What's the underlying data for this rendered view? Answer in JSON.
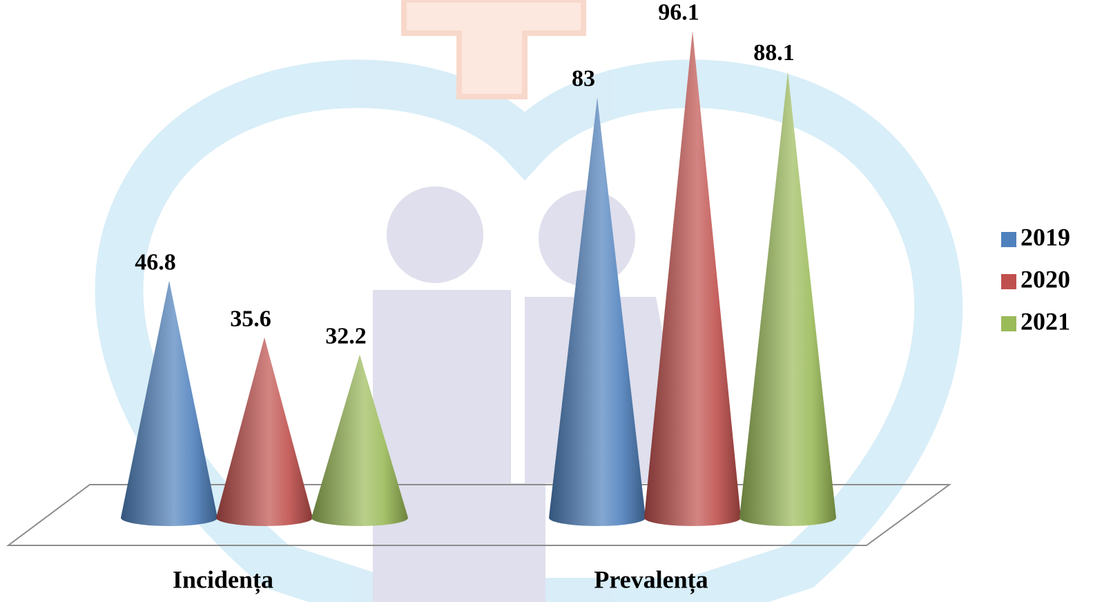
{
  "chart_data": {
    "type": "cone",
    "categories": [
      "Incidența",
      "Prevalența"
    ],
    "series": [
      {
        "name": "2019",
        "color": "#4f81bd",
        "values": [
          46.8,
          83
        ]
      },
      {
        "name": "2020",
        "color": "#c0504d",
        "values": [
          35.6,
          96.1
        ]
      },
      {
        "name": "2021",
        "color": "#9bbb59",
        "values": [
          32.2,
          88.1
        ]
      }
    ],
    "legend": "right"
  }
}
